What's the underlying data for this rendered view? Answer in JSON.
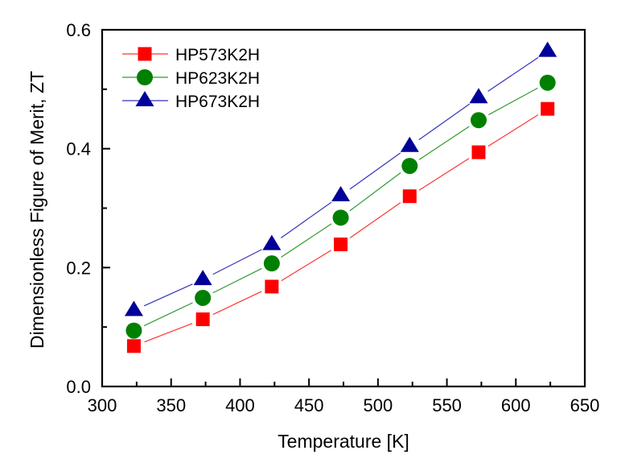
{
  "chart_data": {
    "type": "line",
    "title": "",
    "xlabel": "Temperature [K]",
    "ylabel": "Dimensionless Figure of Merit, ZT",
    "xlim": [
      300,
      650
    ],
    "ylim": [
      0.0,
      0.6
    ],
    "xticks": [
      300,
      350,
      400,
      450,
      500,
      550,
      600,
      650
    ],
    "xtick_labels": [
      "300",
      "350",
      "400",
      "450",
      "500",
      "550",
      "600",
      "650"
    ],
    "yticks": [
      0.0,
      0.2,
      0.4,
      0.6
    ],
    "ytick_labels": [
      "0.0",
      "0.2",
      "0.4",
      "0.6"
    ],
    "grid": false,
    "legend_position": "top-left",
    "x": [
      323,
      373,
      423,
      473,
      523,
      573,
      623
    ],
    "series": [
      {
        "name": "HP573K2H",
        "marker": "square",
        "color": "#ff0000",
        "line_color": "#ff3333",
        "values": [
          0.068,
          0.113,
          0.168,
          0.239,
          0.32,
          0.394,
          0.467
        ]
      },
      {
        "name": "HP623K2H",
        "marker": "circle",
        "color": "#008000",
        "line_color": "#339933",
        "values": [
          0.094,
          0.149,
          0.207,
          0.284,
          0.371,
          0.448,
          0.511
        ]
      },
      {
        "name": "HP673K2H",
        "marker": "triangle",
        "color": "#000099",
        "line_color": "#3333bb",
        "values": [
          0.128,
          0.18,
          0.239,
          0.321,
          0.404,
          0.486,
          0.564
        ]
      }
    ]
  }
}
